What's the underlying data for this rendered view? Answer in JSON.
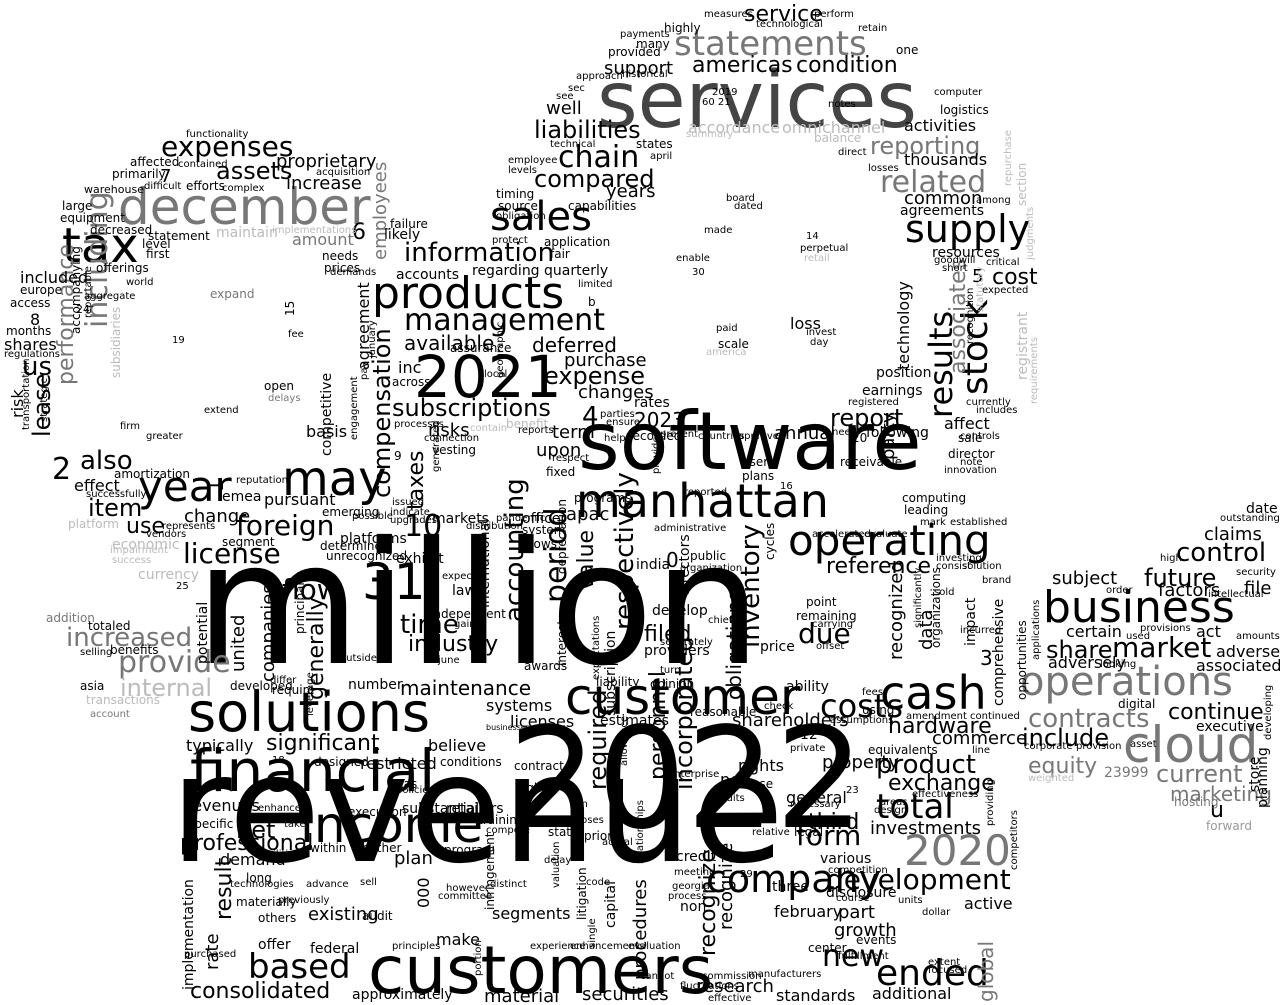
{
  "colors": {
    "background": "#ffffff",
    "primary": "#000000",
    "dark_gray": "#444444",
    "mid_gray": "#777777",
    "gray": "#999999",
    "light_gray": "#bbbbbb"
  },
  "words": {
    "million": "million",
    "revenue": "revenue",
    "y2022": "2022",
    "software": "software",
    "services": "services",
    "customers": "customers",
    "customer": "customer",
    "solutions": "solutions",
    "financial": "financial",
    "income": "income",
    "december": "december",
    "products": "products",
    "y2021": "2021",
    "manhattan": "manhattan",
    "operations": "operations",
    "business": "business",
    "cloud": "cloud",
    "cash": "cash",
    "operating": "operating",
    "company": "company",
    "year": "year",
    "may": "may",
    "tax": "tax",
    "sales": "sales",
    "statements": "statements",
    "supply": "supply",
    "results": "results",
    "stock": "stock",
    "management": "management",
    "information": "information",
    "expenses": "expenses",
    "assets": "assets",
    "chain": "chain",
    "liabilities": "liabilities",
    "compared": "compared",
    "americas": "americas",
    "condition": "condition",
    "related": "related",
    "reporting": "reporting",
    "including": "including",
    "performance": "performance",
    "subscriptions": "subscriptions",
    "expense": "expense",
    "deferred": "deferred",
    "n31": "31",
    "n10": "10",
    "n2023": "2023",
    "n2020": "2020",
    "also": "also",
    "foreign": "foreign",
    "license": "license",
    "flow": "flow",
    "item": "item",
    "lease": "lease",
    "provide": "provide",
    "increased": "increased",
    "internal": "internal",
    "significant": "significant",
    "net": "net",
    "based": "based",
    "consolidated": "consolidated",
    "professional": "professional",
    "revenues": "revenues",
    "maintenance": "maintenance",
    "accounting": "accounting",
    "period": "period",
    "value": "value",
    "respectively": "respectively",
    "inventory": "inventory",
    "obligations": "obligations",
    "costs": "costs",
    "hardware": "hardware",
    "development": "development",
    "ended": "ended",
    "total": "total",
    "form": "form",
    "product": "product",
    "exchange": "exchange",
    "investments": "investments",
    "reference": "reference",
    "future": "future",
    "control": "control",
    "market": "market",
    "share": "share",
    "contracts": "contracts",
    "include": "include",
    "equity": "equity",
    "current": "current",
    "marketing": "marketing",
    "continue": "continue",
    "compensation": "compensation",
    "taxes": "taxes",
    "report": "report",
    "cost": "cost",
    "associates": "associates",
    "technology": "technology",
    "due": "due",
    "time": "time",
    "industry": "industry",
    "filed": "filed",
    "required": "required",
    "personnel": "personnel",
    "incorporated": "incorporated",
    "recognize": "recognize",
    "securities": "securities",
    "research": "research",
    "new": "new",
    "material": "material",
    "approximately": "approximately",
    "standards": "standards",
    "additional": "additional",
    "growth": "growth",
    "third": "third",
    "general": "general",
    "property": "property",
    "shareholders": "shareholders",
    "commerce": "commerce",
    "data": "data",
    "recognized": "recognized",
    "generally": "generally",
    "united": "united",
    "companies": "companies",
    "use": "use",
    "change": "change",
    "effect": "effect",
    "us": "us",
    "risk": "risk",
    "shares": "shares",
    "included": "included",
    "access": "access",
    "europe": "europe",
    "large": "large",
    "equipment": "equipment",
    "warehouse": "warehouse",
    "primarily": "primarily",
    "affected": "affected",
    "increase": "increase",
    "proprietary": "proprietary",
    "amount": "amount",
    "employees": "employees",
    "agreement": "agreement",
    "available": "available",
    "inc": "inc",
    "risks": "risks",
    "term": "term",
    "annual": "annual",
    "upon": "upon",
    "changes": "changes",
    "purchase": "purchase",
    "accounts": "accounts",
    "regarding": "regarding",
    "quarterly": "quarterly",
    "years": "years",
    "well": "well",
    "support": "support",
    "service": "service",
    "accordance": "accordance",
    "omnichannel": "omnichannel",
    "activities": "activities",
    "thousands": "thousands",
    "common": "common",
    "agreements": "agreements",
    "resources": "resources",
    "loss": "loss",
    "position": "position",
    "earnings": "earnings",
    "following": "following",
    "affect": "affect",
    "party": "party",
    "subject": "subject",
    "certain": "certain",
    "adversely": "adversely",
    "factors": "factors",
    "claims": "claims",
    "file": "file",
    "act": "act",
    "adverse": "adverse",
    "associated": "associated",
    "executive": "executive",
    "store": "store",
    "planning": "planning",
    "global": "global",
    "active": "active",
    "part": "part",
    "february": "february",
    "various": "various",
    "disclosure": "disclosure",
    "three": "three",
    "recognizes": "recognize",
    "non": "non",
    "credit": "credit",
    "procedures": "procedures",
    "capital": "capital",
    "segments": "segments",
    "make": "make",
    "plan": "plan",
    "existing": "existing",
    "offer": "offer",
    "demand": "demand",
    "result": "result",
    "rate": "rate",
    "implementation": "implementation",
    "federal": "federal",
    "audit": "audit",
    "typically": "typically",
    "restricted": "restricted",
    "believe": "believe",
    "licenses": "licenses",
    "estimates": "estimates",
    "systems": "systems",
    "conditions": "conditions",
    "number": "number",
    "ability": "ability",
    "price": "price",
    "rights": "rights",
    "per": "per",
    "cause": "cause",
    "basis": "basis",
    "emea": "emea",
    "pursuant": "pursuant",
    "apac": "apac",
    "markets": "markets",
    "exhibit": "exhibit",
    "laws": "laws",
    "india": "india",
    "rates": "rates",
    "recorded": "recorded",
    "n4": "4",
    "n6": "6",
    "n2": "2",
    "n1": "1",
    "n0": "0",
    "n3": "3",
    "n5": "5",
    "n7": "7",
    "n8": "8",
    "n9": "9",
    "n12": "12",
    "n14": "14",
    "n15": "15",
    "n16": "16",
    "n18": "18",
    "n19": "19",
    "n20": "20",
    "n23": "23",
    "n24": "24",
    "n25": "25",
    "n29": "29",
    "n30": "30",
    "n000": "000",
    "n23999": "23999",
    "u": "u",
    "hosting": "hosting",
    "forward": "forward",
    "opportunities": "opportunities",
    "applications": "applications",
    "digital": "digital",
    "outstanding": "outstanding",
    "date": "date",
    "security": "security",
    "intellectual": "intellectual",
    "provisions": "provisions",
    "amounts": "amounts",
    "corporate": "corporate",
    "provision": "provision",
    "weighted": "weighted",
    "asset": "asset",
    "order": "order",
    "looking": "looking",
    "used": "used",
    "high": "high",
    "developing": "developing",
    "registrant": "registrant",
    "goodwill": "goodwill",
    "short": "short",
    "critical": "critical",
    "expected": "expected",
    "logistics": "logistics",
    "computer": "computer",
    "one": "one",
    "highly": "highly",
    "technological": "technological",
    "perform": "perform",
    "retain": "retain",
    "payments": "payments",
    "many": "many",
    "provided": "provided",
    "measures": "measures",
    "historical": "historical",
    "approach": "approach",
    "sec": "sec",
    "see": "see",
    "technical": "technical",
    "states": "states",
    "april": "april",
    "summary": "summary",
    "employee": "employee",
    "levels": "levels",
    "timing": "timing",
    "source": "source",
    "obligation": "obligation",
    "capabilities": "capabilities",
    "board": "board",
    "dated": "dated",
    "made": "made",
    "protect": "protect",
    "application": "application",
    "fair": "fair",
    "enable": "enable",
    "limited": "limited",
    "perpetual": "perpetual",
    "retail": "retail",
    "paid": "paid",
    "scale": "scale",
    "america": "america",
    "invest": "invest",
    "day": "day",
    "notes": "notes",
    "balance": "balance",
    "direct": "direct",
    "losses": "losses",
    "registered": "registered",
    "currently": "currently",
    "includes": "includes",
    "controls": "controls",
    "sale": "sale",
    "director": "director",
    "note": "note",
    "innovation": "innovation",
    "computing": "computing",
    "leading": "leading",
    "mark": "mark",
    "established": "established",
    "investing": "investing",
    "consist": "consist",
    "solution": "solution",
    "brand": "brand",
    "sold": "sold",
    "fees": "fees",
    "amendment": "amendment",
    "continued": "continued",
    "line": "line",
    "effectiveness": "effectiveness",
    "competitors": "competitors",
    "extent": "extent",
    "focused": "focused",
    "center": "center",
    "fulfillment": "fulfillment",
    "events": "events",
    "commission": "commission",
    "manufacturers": "manufacturers",
    "effective": "effective",
    "fluctuations": "fluctuations",
    "delay": "delay",
    "code": "code",
    "actual": "actual",
    "prior": "prior",
    "purposes": "purposes",
    "state": "state",
    "em": "em",
    "right": "right",
    "contract": "contract",
    "training": "training",
    "compete": "compete",
    "retailers": "retailers",
    "execution": "execution",
    "substantial": "substantial",
    "policies": "policies",
    "saas": "saas",
    "enhance": "enhance",
    "specific": "specific",
    "take": "take",
    "facilities": "facilities",
    "within": "within",
    "whether": "whether",
    "program": "program",
    "sell": "sell",
    "advance": "advance",
    "distinct": "distinct",
    "meeting": "meeting",
    "georgia": "georgia",
    "process": "process",
    "enterprise": "enterprise",
    "relationships": "relationships",
    "valuation": "valuation",
    "litigation": "litigation",
    "single": "single",
    "experience": "experience",
    "enhancements": "enhancements",
    "evaluation": "evaluation",
    "cannot": "cannot",
    "portion": "portion",
    "principles": "principles",
    "however": "however",
    "committee": "committee",
    "infringement": "infringement",
    "previously": "previously",
    "long": "long",
    "technologies": "technologies",
    "materially": "materially",
    "others": "others",
    "purchased": "purchased",
    "competitive": "competitive",
    "platforms": "platforms",
    "unrecognized": "unrecognized",
    "possible": "possible",
    "emerging": "emerging",
    "principally": "principally",
    "require": "require",
    "potential": "potential",
    "economic": "economic",
    "currency": "currency",
    "impairment": "impairment",
    "success": "success",
    "vendors": "vendors",
    "represents": "represents",
    "platform": "platform",
    "segment": "segment",
    "addition": "addition",
    "totaled": "totaled",
    "benefits": "benefits",
    "selling": "selling",
    "asia": "asia",
    "transactions": "transactions",
    "account": "account",
    "developed": "developed",
    "amortization": "amortization",
    "transportation": "transportation",
    "strategic": "strategic",
    "subsidiaries": "subsidiaries",
    "firm": "firm",
    "greater": "greater",
    "successfully": "successfully",
    "functionality": "functionality",
    "contained": "contained",
    "acquisition": "acquisition",
    "difficult": "difficult",
    "efforts": "efforts",
    "complex": "complex",
    "decreased": "decreased",
    "statement": "statement",
    "maintain": "maintain",
    "implementations": "implementations",
    "offerings": "offerings",
    "level": "level",
    "first": "first",
    "needs": "needs",
    "prices": "prices",
    "demands": "demands",
    "likely": "likely",
    "failure": "failure",
    "expand": "expand",
    "world": "world",
    "aggregate": "aggregate",
    "accompanying": "accompanying",
    "reportable": "reportable",
    "months": "months",
    "regulations": "regulations",
    "fee": "fee",
    "open": "open",
    "delays": "delays",
    "extend": "extend",
    "reputation": "reputation",
    "issued": "issued",
    "upgrades": "upgrades",
    "indicate": "indicate",
    "determine": "determine",
    "engagement": "engagement",
    "local": "local",
    "assurance": "assurance",
    "geographic": "geographic",
    "across": "across",
    "processes": "processes",
    "connection": "connection",
    "contain": "contain",
    "benefit": "benefit",
    "reports": "reports",
    "vesting": "vesting",
    "generated": "generated",
    "january": "january",
    "pay": "pay",
    "parties": "parties",
    "ensure": "ensure",
    "help": "help",
    "present": "present",
    "countries": "countries",
    "approved": "approved",
    "respect": "respect",
    "fixed": "fixed",
    "user": "user",
    "plans": "plans",
    "reported": "reported",
    "provides": "provides",
    "administrative": "administrative",
    "public": "public",
    "organization": "organization",
    "programs": "programs",
    "officer": "officer",
    "pandemic": "pandemic",
    "system": "system",
    "flows": "flows",
    "directors": "directors",
    "international": "international",
    "expect": "expect",
    "independent": "independent",
    "gains": "gains",
    "distribution": "distribution",
    "interest": "interest",
    "depreciation": "depreciation",
    "develop": "develop",
    "chief": "chief",
    "subscription": "subscription",
    "expectations": "expectations",
    "june": "june",
    "awards": "awards",
    "separately": "separately",
    "providers": "providers",
    "turn": "turn",
    "opinion": "opinion",
    "liability": "liability",
    "reasonable": "reasonable",
    "allowance": "allowance",
    "businesses": "businesses",
    "outside": "outside",
    "differ": "differ",
    "leverage": "leverage",
    "designed": "designed",
    "audits": "audits",
    "necessary": "necessary",
    "relative": "relative",
    "legal": "legal",
    "competition": "competition",
    "course": "course",
    "units": "units",
    "dollar": "dollar",
    "design": "design",
    "areas": "areas",
    "providing": "providing",
    "significantly": "significantly",
    "organizations": "organizations",
    "comprehensive": "comprehensive",
    "incurred": "incurred",
    "impact": "impact",
    "cycles": "cycles",
    "accelerated": "accelerated",
    "evaluate": "evaluate",
    "remaining": "remaining",
    "carrying": "carrying",
    "offset": "offset",
    "point": "point",
    "check": "check",
    "private": "private",
    "using": "using",
    "assumptions": "assumptions",
    "equivalents": "equivalents",
    "receivable": "receivable",
    "repurchase": "repurchase",
    "section": "section",
    "among": "among",
    "judgments": "judgments",
    "recognition": "recognition",
    "statutory": "statutory",
    "requirements": "requirements",
    "need": "need",
    "y2019": "2019",
    "nums_small": "60 21",
    "b": "b"
  }
}
